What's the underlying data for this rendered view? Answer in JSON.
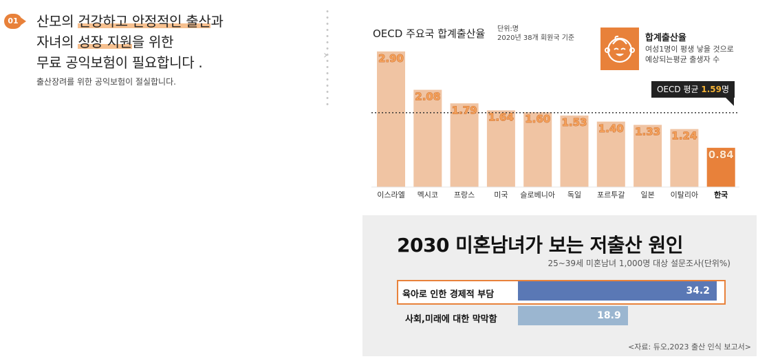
{
  "intro": {
    "number": "01",
    "line1_pre": "산모의 ",
    "line1_hl": "건강하고 안정적인 출산",
    "line1_post": "과",
    "line2_pre": "자녀의 ",
    "line2_hl": "성장 지원",
    "line2_post": "을 위한",
    "line3": "무료 공익보험이 필요합니다 .",
    "sub": "출산장려를 위한 공익보험이 절실합니다."
  },
  "chart_data": [
    {
      "type": "bar",
      "title": "OECD 주요국 합계출산율",
      "unit": "단위:명",
      "note": "2020년 38개 회원국 기준",
      "categories": [
        "이스라엘",
        "멕시코",
        "프랑스",
        "미국",
        "슬로베니아",
        "독일",
        "포르투갈",
        "일본",
        "이탈리아",
        "한국"
      ],
      "values": [
        2.9,
        2.08,
        1.79,
        1.64,
        1.6,
        1.53,
        1.4,
        1.33,
        1.24,
        0.84
      ],
      "value_labels": [
        "2.90",
        "2.08",
        "1.79",
        "1.64",
        "1.60",
        "1.53",
        "1.40",
        "1.33",
        "1.24",
        "0.84"
      ],
      "highlight": "한국",
      "reference_line": {
        "value": 1.59,
        "label": "OECD 평균",
        "value_label": "1.59",
        "unit": "명"
      },
      "legend": {
        "title": "합계출산율",
        "desc_line1": "여성1명이 평생 낳을 것으로",
        "desc_line2": "예상되는평균 출생자 수",
        "icon": "baby-face-icon"
      },
      "colors": {
        "bar": "#f0c4a3",
        "highlight": "#e8813a",
        "label_fill": "#f4a05a",
        "label_stroke": "#c2601c"
      }
    },
    {
      "type": "bar",
      "orientation": "horizontal",
      "title": "2030 미혼남녀가 보는 저출산 원인",
      "subtitle": "25~39세 미혼남녀 1,000명 대상 설문조사(단위%)",
      "categories": [
        "육아로 인한 경제적 부담",
        "사회,미래에 대한 막막함"
      ],
      "values": [
        34.2,
        18.9
      ],
      "value_labels": [
        "34.2",
        "18.9"
      ],
      "colors": [
        "#5a78b5",
        "#9bb6d0"
      ],
      "source": "<자료: 듀오,2023 출산 인식 보고서>"
    }
  ]
}
